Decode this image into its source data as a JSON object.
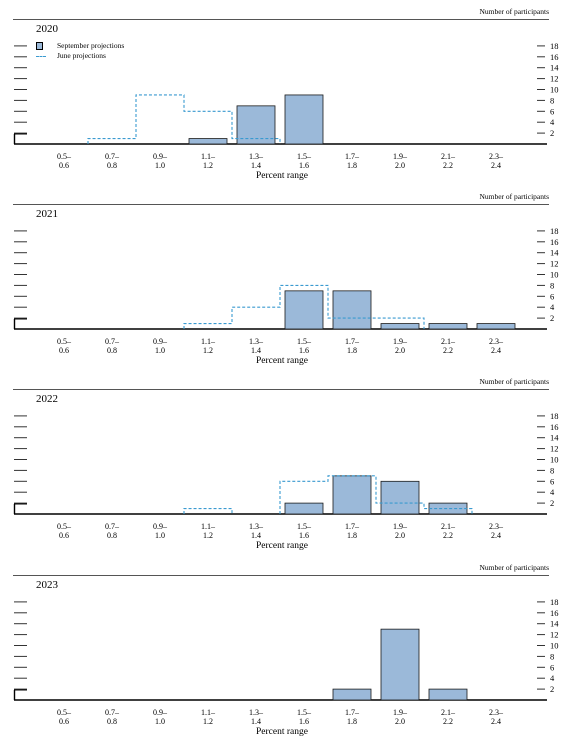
{
  "chart_data": [
    {
      "type": "bar",
      "title": "2020",
      "units_label": "Number of participants",
      "xlabel": "Percent range",
      "categories": [
        "0.5–0.6",
        "0.7–0.8",
        "0.9–1.0",
        "1.1–1.2",
        "1.3–1.4",
        "1.5–1.6",
        "1.7–1.8",
        "1.9–2.0",
        "2.1–2.2",
        "2.3–2.4"
      ],
      "tick_labels_top": [
        "0.5–",
        "0.7–",
        "0.9–",
        "1.1–",
        "1.3–",
        "1.5–",
        "1.7–",
        "1.9–",
        "2.1–",
        "2.3–"
      ],
      "tick_labels_bottom": [
        "0.6",
        "0.8",
        "1.0",
        "1.2",
        "1.4",
        "1.6",
        "1.8",
        "2.0",
        "2.2",
        "2.4"
      ],
      "yticks": [
        2,
        4,
        6,
        8,
        10,
        12,
        14,
        16,
        18
      ],
      "ylim": [
        0,
        20
      ],
      "legend": [
        {
          "label": "September projections",
          "style": "bar"
        },
        {
          "label": "June projections",
          "style": "dashed"
        }
      ],
      "series": [
        {
          "name": "September projections",
          "values": [
            0,
            0,
            0,
            1,
            7,
            9,
            0,
            0,
            0,
            0
          ]
        },
        {
          "name": "June projections",
          "values": [
            0,
            1,
            9,
            6,
            1,
            0,
            0,
            0,
            0,
            0
          ]
        }
      ]
    },
    {
      "type": "bar",
      "title": "2021",
      "units_label": "Number of participants",
      "xlabel": "Percent range",
      "categories": [
        "0.5–0.6",
        "0.7–0.8",
        "0.9–1.0",
        "1.1–1.2",
        "1.3–1.4",
        "1.5–1.6",
        "1.7–1.8",
        "1.9–2.0",
        "2.1–2.2",
        "2.3–2.4"
      ],
      "tick_labels_top": [
        "0.5–",
        "0.7–",
        "0.9–",
        "1.1–",
        "1.3–",
        "1.5–",
        "1.7–",
        "1.9–",
        "2.1–",
        "2.3–"
      ],
      "tick_labels_bottom": [
        "0.6",
        "0.8",
        "1.0",
        "1.2",
        "1.4",
        "1.6",
        "1.8",
        "2.0",
        "2.2",
        "2.4"
      ],
      "yticks": [
        2,
        4,
        6,
        8,
        10,
        12,
        14,
        16,
        18
      ],
      "ylim": [
        0,
        20
      ],
      "series": [
        {
          "name": "September projections",
          "values": [
            0,
            0,
            0,
            0,
            0,
            7,
            7,
            1,
            1,
            1
          ]
        },
        {
          "name": "June projections",
          "values": [
            0,
            0,
            0,
            1,
            4,
            8,
            2,
            2,
            0,
            0
          ]
        }
      ]
    },
    {
      "type": "bar",
      "title": "2022",
      "units_label": "Number of participants",
      "xlabel": "Percent range",
      "categories": [
        "0.5–0.6",
        "0.7–0.8",
        "0.9–1.0",
        "1.1–1.2",
        "1.3–1.4",
        "1.5–1.6",
        "1.7–1.8",
        "1.9–2.0",
        "2.1–2.2",
        "2.3–2.4"
      ],
      "tick_labels_top": [
        "0.5–",
        "0.7–",
        "0.9–",
        "1.1–",
        "1.3–",
        "1.5–",
        "1.7–",
        "1.9–",
        "2.1–",
        "2.3–"
      ],
      "tick_labels_bottom": [
        "0.6",
        "0.8",
        "1.0",
        "1.2",
        "1.4",
        "1.6",
        "1.8",
        "2.0",
        "2.2",
        "2.4"
      ],
      "yticks": [
        2,
        4,
        6,
        8,
        10,
        12,
        14,
        16,
        18
      ],
      "ylim": [
        0,
        20
      ],
      "series": [
        {
          "name": "September projections",
          "values": [
            0,
            0,
            0,
            0,
            0,
            2,
            7,
            6,
            2,
            0
          ]
        },
        {
          "name": "June projections",
          "values": [
            0,
            0,
            0,
            1,
            0,
            6,
            7,
            2,
            1,
            0
          ]
        }
      ]
    },
    {
      "type": "bar",
      "title": "2023",
      "units_label": "Number of participants",
      "xlabel": "Percent range",
      "categories": [
        "0.5–0.6",
        "0.7–0.8",
        "0.9–1.0",
        "1.1–1.2",
        "1.3–1.4",
        "1.5–1.6",
        "1.7–1.8",
        "1.9–2.0",
        "2.1–2.2",
        "2.3–2.4"
      ],
      "tick_labels_top": [
        "0.5–",
        "0.7–",
        "0.9–",
        "1.1–",
        "1.3–",
        "1.5–",
        "1.7–",
        "1.9–",
        "2.1–",
        "2.3–"
      ],
      "tick_labels_bottom": [
        "0.6",
        "0.8",
        "1.0",
        "1.2",
        "1.4",
        "1.6",
        "1.8",
        "2.0",
        "2.2",
        "2.4"
      ],
      "yticks": [
        2,
        4,
        6,
        8,
        10,
        12,
        14,
        16,
        18
      ],
      "ylim": [
        0,
        20
      ],
      "series": [
        {
          "name": "September projections",
          "values": [
            0,
            0,
            0,
            0,
            0,
            0,
            2,
            13,
            2,
            0
          ]
        }
      ]
    }
  ],
  "colors": {
    "bar_fill": "#9bb9d9",
    "bar_stroke": "#1a1a1a",
    "june_line": "#3a9ad0",
    "rule": "#555555"
  }
}
